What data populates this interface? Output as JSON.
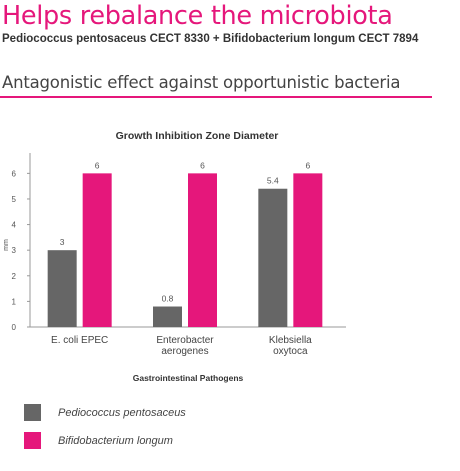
{
  "header": {
    "title": "Helps rebalance the microbiota",
    "subtitle": "Pediococcus pentosaceus CECT 8330 + Bifidobacterium longum CECT 7894",
    "section": "Antagonistic effect against opportunistic bacteria"
  },
  "colors": {
    "accent": "#e5177b",
    "series1": "#666666",
    "series2": "#e5177b"
  },
  "chart_data": {
    "type": "bar",
    "title": "Growth Inhibition Zone Diameter",
    "xlabel": "Gastrointestinal Pathogens",
    "ylabel": "mm",
    "ylim": [
      0,
      6.6
    ],
    "yticks": [
      0,
      1,
      2,
      3,
      4,
      5,
      6
    ],
    "categories": [
      [
        "E. coli EPEC"
      ],
      [
        "Enterobacter",
        "aerogenes"
      ],
      [
        "Klebsiella",
        "oxytoca"
      ]
    ],
    "series": [
      {
        "name": "Pediococcus pentosaceus",
        "color": "#666666",
        "values": [
          3,
          0.8,
          5.4
        ],
        "labels": [
          "3",
          "0.8",
          "5.4"
        ]
      },
      {
        "name": "Bifidobacterium longum",
        "color": "#e5177b",
        "values": [
          6,
          6,
          6
        ],
        "labels": [
          "6",
          "6",
          "6"
        ]
      }
    ],
    "grid": false,
    "legend_position": "bottom-left"
  }
}
